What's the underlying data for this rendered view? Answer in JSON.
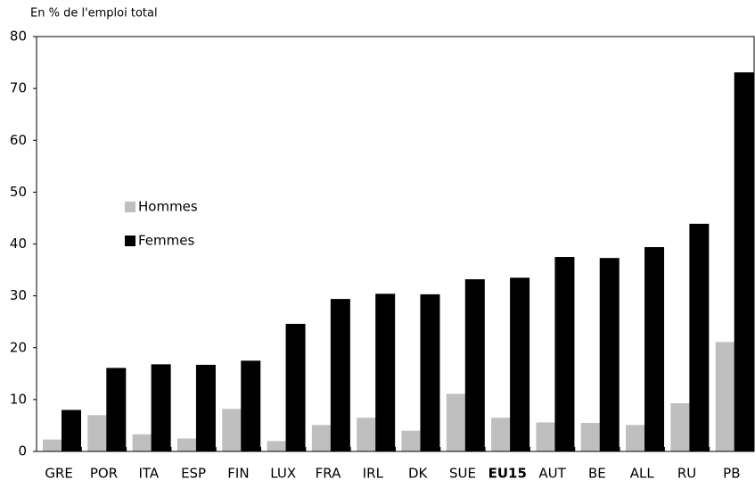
{
  "chart_data": {
    "type": "bar",
    "y_axis_label": "En % de l'emploi total",
    "categories": [
      "GRE",
      "POR",
      "ITA",
      "ESP",
      "FIN",
      "LUX",
      "FRA",
      "IRL",
      "DK",
      "SUE",
      "EU15",
      "AUT",
      "BE",
      "ALL",
      "RU",
      "PB"
    ],
    "highlight_index": 10,
    "series": [
      {
        "name": "Hommes",
        "color": "#bfbfbf",
        "values": [
          2.3,
          7,
          3.3,
          2.5,
          8.2,
          2,
          5.1,
          6.5,
          4,
          11.1,
          6.5,
          5.6,
          5.5,
          5.1,
          9.3,
          21.1
        ]
      },
      {
        "name": "Femmes",
        "color": "#000000",
        "values": [
          8,
          16.1,
          16.8,
          16.7,
          17.5,
          24.6,
          29.4,
          30.4,
          30.3,
          33.2,
          33.5,
          37.5,
          37.3,
          39.4,
          43.9,
          73.1
        ]
      }
    ],
    "ylim": [
      0,
      80
    ],
    "yticks": [
      0,
      10,
      20,
      30,
      40,
      50,
      60,
      70,
      80
    ],
    "grid": false,
    "legend": "left"
  }
}
